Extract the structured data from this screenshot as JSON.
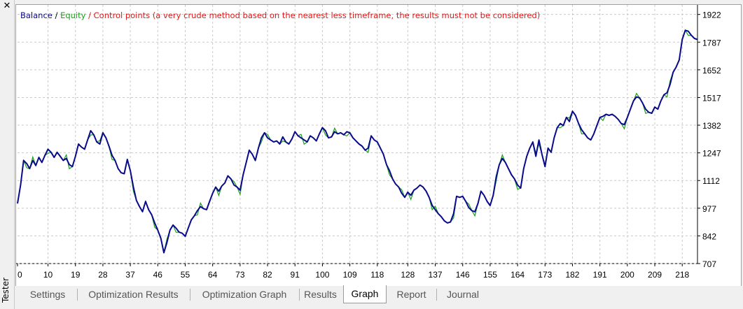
{
  "window": {
    "close_glyph": "✕",
    "panel_label": "Tester"
  },
  "tabs": [
    {
      "label": "Settings",
      "active": false
    },
    {
      "label": "Optimization Results",
      "active": false
    },
    {
      "label": "Optimization Graph",
      "active": false
    },
    {
      "label": "Results",
      "active": false
    },
    {
      "label": "Graph",
      "active": true
    },
    {
      "label": "Report",
      "active": false
    },
    {
      "label": "Journal",
      "active": false
    }
  ],
  "colors": {
    "balance": "#0a0a8c",
    "equity": "#1aa01a",
    "control_points": "#e01818",
    "grid": "#c8c8c8"
  },
  "chart_data": {
    "type": "line",
    "title_parts": [
      {
        "text": "Balance",
        "color": "#0a0a8c"
      },
      {
        "text": " / ",
        "color": "#000000"
      },
      {
        "text": "Equity",
        "color": "#1aa01a"
      },
      {
        "text": " / Control points (a very crude method based on the nearest less timeframe, the results must not be considered)",
        "color": "#e01818"
      }
    ],
    "x_ticks": [
      0,
      10,
      19,
      28,
      37,
      46,
      55,
      64,
      73,
      82,
      91,
      100,
      109,
      118,
      128,
      137,
      146,
      155,
      164,
      173,
      182,
      191,
      200,
      209,
      218
    ],
    "y_ticks": [
      707,
      842,
      977,
      1112,
      1247,
      1382,
      1517,
      1652,
      1787,
      1922
    ],
    "xlim": [
      0,
      223
    ],
    "ylim": [
      707,
      1955
    ],
    "grid": true,
    "series": [
      {
        "name": "Balance",
        "x": [
          0,
          1,
          2,
          3,
          4,
          5,
          6,
          7,
          8,
          9,
          10,
          11,
          12,
          13,
          14,
          15,
          16,
          17,
          18,
          19,
          20,
          21,
          22,
          23,
          24,
          25,
          26,
          27,
          28,
          29,
          30,
          31,
          32,
          33,
          34,
          35,
          36,
          37,
          38,
          39,
          40,
          41,
          42,
          43,
          44,
          45,
          46,
          47,
          48,
          49,
          50,
          51,
          52,
          53,
          54,
          55,
          56,
          57,
          58,
          59,
          60,
          61,
          62,
          63,
          64,
          65,
          66,
          67,
          68,
          69,
          70,
          71,
          72,
          73,
          74,
          75,
          76,
          77,
          78,
          79,
          80,
          81,
          82,
          83,
          84,
          85,
          86,
          87,
          88,
          89,
          90,
          91,
          92,
          93,
          94,
          95,
          96,
          97,
          98,
          99,
          100,
          101,
          102,
          103,
          104,
          105,
          106,
          107,
          108,
          109,
          110,
          111,
          112,
          113,
          114,
          115,
          116,
          117,
          118,
          119,
          120,
          121,
          122,
          123,
          124,
          125,
          126,
          127,
          128,
          129,
          130,
          131,
          132,
          133,
          134,
          135,
          136,
          137,
          138,
          139,
          140,
          141,
          142,
          143,
          144,
          145,
          146,
          147,
          148,
          149,
          150,
          151,
          152,
          153,
          154,
          155,
          156,
          157,
          158,
          159,
          160,
          161,
          162,
          163,
          164,
          165,
          166,
          167,
          168,
          169,
          170,
          171,
          172,
          173,
          174,
          175,
          176,
          177,
          178,
          179,
          180,
          181,
          182,
          183,
          184,
          185,
          186,
          187,
          188,
          189,
          190,
          191,
          192,
          193,
          194,
          195,
          196,
          197,
          198,
          199,
          200,
          201,
          202,
          203,
          204,
          205,
          206,
          207,
          208,
          209,
          210,
          211,
          212,
          213,
          214,
          215,
          216,
          217,
          218,
          219,
          220,
          221,
          222,
          223
        ],
        "values": [
          1000,
          1090,
          1210,
          1195,
          1170,
          1210,
          1185,
          1225,
          1200,
          1235,
          1265,
          1250,
          1225,
          1250,
          1230,
          1210,
          1220,
          1190,
          1180,
          1230,
          1290,
          1275,
          1265,
          1310,
          1355,
          1335,
          1300,
          1290,
          1345,
          1320,
          1280,
          1235,
          1210,
          1170,
          1150,
          1145,
          1215,
          1160,
          1080,
          1015,
          985,
          960,
          1010,
          970,
          945,
          905,
          870,
          830,
          760,
          810,
          870,
          895,
          880,
          860,
          855,
          840,
          880,
          920,
          940,
          965,
          985,
          975,
          970,
          1010,
          1050,
          1080,
          1060,
          1085,
          1100,
          1135,
          1120,
          1090,
          1080,
          1065,
          1140,
          1200,
          1260,
          1240,
          1210,
          1270,
          1320,
          1345,
          1320,
          1310,
          1300,
          1305,
          1290,
          1325,
          1300,
          1290,
          1315,
          1350,
          1330,
          1320,
          1310,
          1300,
          1330,
          1320,
          1305,
          1340,
          1370,
          1355,
          1320,
          1325,
          1350,
          1340,
          1345,
          1335,
          1350,
          1345,
          1320,
          1305,
          1290,
          1280,
          1260,
          1270,
          1330,
          1310,
          1300,
          1270,
          1240,
          1190,
          1160,
          1120,
          1095,
          1080,
          1050,
          1030,
          1055,
          1040,
          1065,
          1075,
          1090,
          1080,
          1060,
          1030,
          990,
          970,
          950,
          935,
          915,
          905,
          910,
          950,
          1035,
          1030,
          1035,
          1010,
          980,
          965,
          960,
          1000,
          1060,
          1040,
          1010,
          990,
          1040,
          1130,
          1190,
          1220,
          1200,
          1170,
          1140,
          1120,
          1090,
          1075,
          1170,
          1230,
          1270,
          1300,
          1230,
          1310,
          1240,
          1180,
          1270,
          1250,
          1320,
          1370,
          1390,
          1380,
          1420,
          1400,
          1450,
          1430,
          1390,
          1360,
          1340,
          1320,
          1310,
          1340,
          1380,
          1420,
          1425,
          1435,
          1430,
          1435,
          1425,
          1410,
          1390,
          1385,
          1420,
          1460,
          1500,
          1520,
          1515,
          1490,
          1460,
          1445,
          1440,
          1470,
          1460,
          1500,
          1530,
          1540,
          1580,
          1640,
          1665,
          1700,
          1800,
          1845,
          1840,
          1820,
          1805,
          1800
        ]
      }
    ]
  }
}
